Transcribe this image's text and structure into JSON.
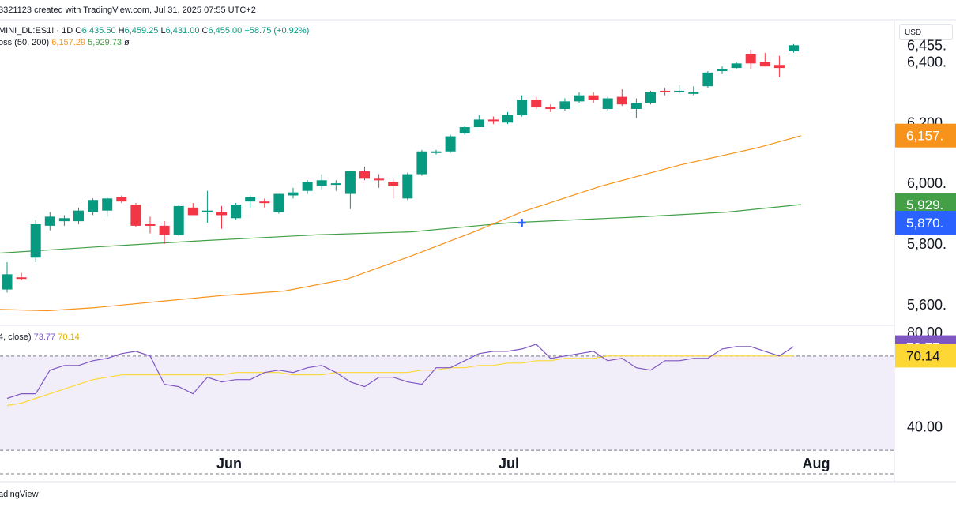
{
  "header": {
    "created_line": "3321123 created with TradingView.com, Jul 31, 2025 07:55 UTC+2"
  },
  "legend": {
    "symbol": "MINI_DL:ES1! · 1D",
    "open_label": "O",
    "open": "6,435.50",
    "high_label": "H",
    "high": "6,459.25",
    "low_label": "L",
    "low": "6,431.00",
    "close_label": "C",
    "close": "6,455.00",
    "change": "+58.75 (+0.92%)",
    "ma_name": "oss (50, 200)",
    "ma50_value": "6,157.29",
    "ma200_value": "5,929.73",
    "ma_suffix": "ø",
    "rsi_name": "4, close)",
    "rsi_value": "73.77",
    "rsi_ma_value": "70.14"
  },
  "currency": "USD",
  "footer": {
    "brand": "adingView"
  },
  "colors": {
    "up": "#089981",
    "down": "#f23645",
    "ma50": "#f7931a",
    "ma200": "#43a047",
    "rsi": "#7e57c2",
    "rsi_ma": "#fdd835",
    "cross": "#2962ff"
  },
  "chart_data": {
    "type": "candlestick",
    "price_axis": {
      "ticks": [
        "6,455.",
        "6,400.",
        "6,200",
        "6,000.",
        "5,800.",
        "5,600."
      ],
      "tags": [
        {
          "label": "6,157.",
          "value": 6157.29,
          "color": "#f7931a"
        },
        {
          "label": "5,929.",
          "value": 5929.73,
          "color": "#43a047"
        },
        {
          "label": "5,870.",
          "value": 5870,
          "color": "#2962ff"
        }
      ],
      "ylim": [
        5550,
        6500
      ]
    },
    "x_ticks": [
      "Jun",
      "Jul",
      "Aug"
    ],
    "candles": [
      {
        "o": 5650,
        "h": 5740,
        "l": 5640,
        "c": 5700
      },
      {
        "o": 5690,
        "h": 5705,
        "l": 5680,
        "c": 5685
      },
      {
        "o": 5755,
        "h": 5880,
        "l": 5740,
        "c": 5865
      },
      {
        "o": 5860,
        "h": 5905,
        "l": 5845,
        "c": 5890
      },
      {
        "o": 5875,
        "h": 5895,
        "l": 5860,
        "c": 5885
      },
      {
        "o": 5875,
        "h": 5920,
        "l": 5865,
        "c": 5910
      },
      {
        "o": 5905,
        "h": 5950,
        "l": 5895,
        "c": 5945
      },
      {
        "o": 5910,
        "h": 5955,
        "l": 5890,
        "c": 5950
      },
      {
        "o": 5955,
        "h": 5960,
        "l": 5935,
        "c": 5940
      },
      {
        "o": 5930,
        "h": 5935,
        "l": 5855,
        "c": 5860
      },
      {
        "o": 5865,
        "h": 5890,
        "l": 5835,
        "c": 5860
      },
      {
        "o": 5860,
        "h": 5875,
        "l": 5800,
        "c": 5830
      },
      {
        "o": 5830,
        "h": 5930,
        "l": 5825,
        "c": 5925
      },
      {
        "o": 5920,
        "h": 5935,
        "l": 5895,
        "c": 5895
      },
      {
        "o": 5905,
        "h": 5975,
        "l": 5870,
        "c": 5910
      },
      {
        "o": 5905,
        "h": 5925,
        "l": 5850,
        "c": 5895
      },
      {
        "o": 5885,
        "h": 5935,
        "l": 5880,
        "c": 5930
      },
      {
        "o": 5940,
        "h": 5960,
        "l": 5920,
        "c": 5955
      },
      {
        "o": 5940,
        "h": 5950,
        "l": 5920,
        "c": 5935
      },
      {
        "o": 5905,
        "h": 5965,
        "l": 5900,
        "c": 5965
      },
      {
        "o": 5960,
        "h": 5985,
        "l": 5950,
        "c": 5970
      },
      {
        "o": 5975,
        "h": 6010,
        "l": 5965,
        "c": 6005
      },
      {
        "o": 5990,
        "h": 6030,
        "l": 5980,
        "c": 6010
      },
      {
        "o": 5995,
        "h": 6010,
        "l": 5975,
        "c": 6000
      },
      {
        "o": 5965,
        "h": 6040,
        "l": 5915,
        "c": 6040
      },
      {
        "o": 6040,
        "h": 6055,
        "l": 6010,
        "c": 6015
      },
      {
        "o": 6015,
        "h": 6030,
        "l": 5985,
        "c": 6010
      },
      {
        "o": 6005,
        "h": 6015,
        "l": 5950,
        "c": 5990
      },
      {
        "o": 5950,
        "h": 6035,
        "l": 5945,
        "c": 6030
      },
      {
        "o": 6030,
        "h": 6110,
        "l": 6025,
        "c": 6105
      },
      {
        "o": 6100,
        "h": 6110,
        "l": 6095,
        "c": 6105
      },
      {
        "o": 6105,
        "h": 6160,
        "l": 6100,
        "c": 6155
      },
      {
        "o": 6165,
        "h": 6190,
        "l": 6160,
        "c": 6185
      },
      {
        "o": 6185,
        "h": 6225,
        "l": 6185,
        "c": 6210
      },
      {
        "o": 6210,
        "h": 6220,
        "l": 6195,
        "c": 6205
      },
      {
        "o": 6200,
        "h": 6235,
        "l": 6195,
        "c": 6225
      },
      {
        "o": 6225,
        "h": 6290,
        "l": 6220,
        "c": 6275
      },
      {
        "o": 6275,
        "h": 6285,
        "l": 6245,
        "c": 6250
      },
      {
        "o": 6250,
        "h": 6260,
        "l": 6235,
        "c": 6245
      },
      {
        "o": 6245,
        "h": 6280,
        "l": 6240,
        "c": 6270
      },
      {
        "o": 6270,
        "h": 6300,
        "l": 6265,
        "c": 6290
      },
      {
        "o": 6290,
        "h": 6300,
        "l": 6265,
        "c": 6275
      },
      {
        "o": 6245,
        "h": 6285,
        "l": 6240,
        "c": 6280
      },
      {
        "o": 6285,
        "h": 6310,
        "l": 6255,
        "c": 6260
      },
      {
        "o": 6245,
        "h": 6280,
        "l": 6215,
        "c": 6265
      },
      {
        "o": 6265,
        "h": 6305,
        "l": 6260,
        "c": 6300
      },
      {
        "o": 6305,
        "h": 6315,
        "l": 6290,
        "c": 6300
      },
      {
        "o": 6300,
        "h": 6325,
        "l": 6295,
        "c": 6305
      },
      {
        "o": 6300,
        "h": 6320,
        "l": 6290,
        "c": 6300
      },
      {
        "o": 6320,
        "h": 6370,
        "l": 6315,
        "c": 6365
      },
      {
        "o": 6370,
        "h": 6385,
        "l": 6360,
        "c": 6375
      },
      {
        "o": 6380,
        "h": 6400,
        "l": 6375,
        "c": 6395
      },
      {
        "o": 6425,
        "h": 6440,
        "l": 6375,
        "c": 6395
      },
      {
        "o": 6400,
        "h": 6430,
        "l": 6385,
        "c": 6385
      },
      {
        "o": 6390,
        "h": 6420,
        "l": 6350,
        "c": 6380
      },
      {
        "o": 6435,
        "h": 6459,
        "l": 6431,
        "c": 6455
      }
    ],
    "ma50": [
      [
        0,
        5584
      ],
      [
        60,
        5580
      ],
      [
        120,
        5590
      ],
      [
        200,
        5610
      ],
      [
        280,
        5630
      ],
      [
        360,
        5645
      ],
      [
        440,
        5685
      ],
      [
        520,
        5760
      ],
      [
        600,
        5840
      ],
      [
        660,
        5905
      ],
      [
        760,
        5990
      ],
      [
        860,
        6060
      ],
      [
        960,
        6118
      ],
      [
        1014,
        6157
      ]
    ],
    "ma200": [
      [
        0,
        5770
      ],
      [
        120,
        5790
      ],
      [
        250,
        5810
      ],
      [
        400,
        5830
      ],
      [
        520,
        5840
      ],
      [
        645,
        5870
      ],
      [
        800,
        5888
      ],
      [
        920,
        5905
      ],
      [
        1014,
        5930
      ]
    ],
    "cross_marker": {
      "x_index": 36,
      "value": 5870
    },
    "rsi": {
      "axis_ticks": [
        "80.00",
        "40.00"
      ],
      "levels": [
        70,
        30
      ],
      "ylim": [
        20,
        81
      ],
      "current": 73.77,
      "ma_current": 70.14,
      "rsi_series": [
        52,
        54,
        54,
        64,
        66,
        66,
        68,
        69,
        71,
        72,
        70,
        58,
        57,
        54,
        61,
        59,
        60,
        60,
        63,
        64,
        63,
        65,
        66,
        63,
        59,
        57,
        61,
        61,
        59,
        58,
        65,
        65,
        68,
        71,
        72,
        72,
        73,
        75,
        69,
        70,
        71,
        72,
        68,
        69,
        65,
        64,
        68,
        68,
        69,
        69,
        73,
        74,
        74,
        72,
        70,
        74
      ],
      "rsi_ma_series": [
        49,
        50,
        52,
        54,
        56,
        58,
        60,
        61,
        62,
        62,
        62,
        62,
        62,
        62,
        62,
        62,
        63,
        63,
        63,
        63,
        62,
        62,
        62,
        63,
        63,
        63,
        63,
        63,
        63,
        64,
        64,
        65,
        65,
        66,
        66,
        67,
        67,
        68,
        68,
        69,
        69,
        69,
        70,
        70,
        70,
        70,
        70,
        70,
        70,
        70,
        70,
        70,
        70,
        70,
        70,
        70
      ]
    }
  }
}
